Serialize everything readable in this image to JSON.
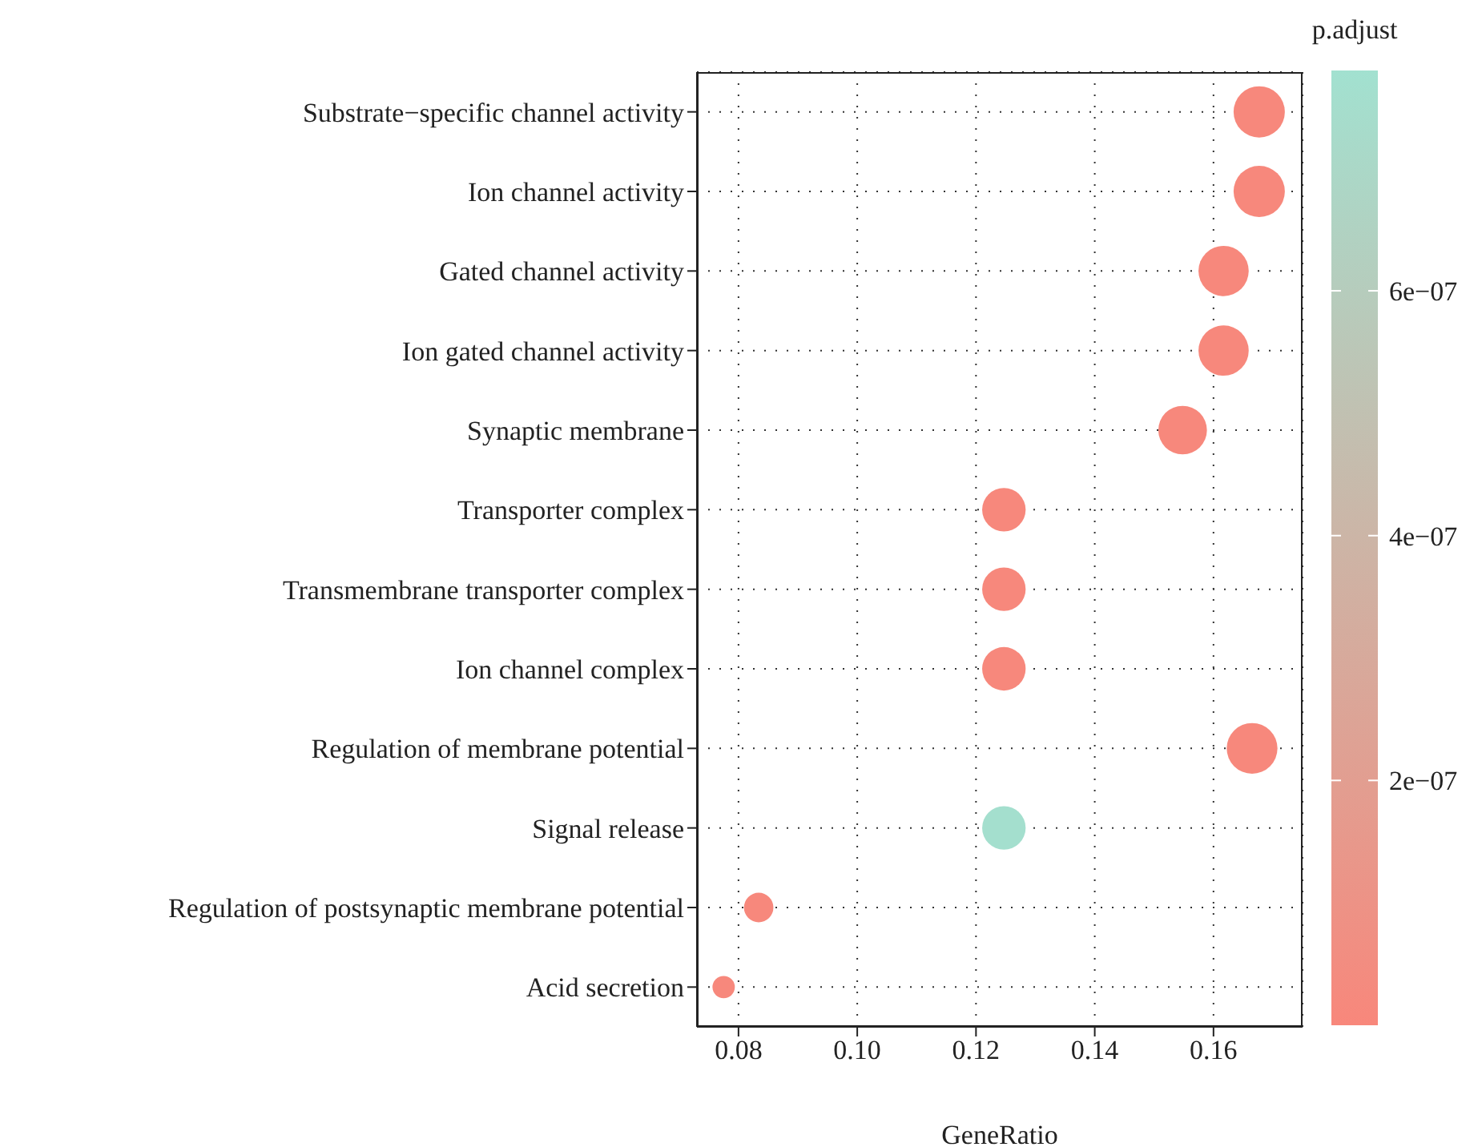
{
  "chart_data": {
    "type": "scatter",
    "categories": [
      "Substrate−specific channel activity",
      "Ion channel activity",
      "Gated channel activity",
      "Ion gated channel activity",
      "Synaptic membrane",
      "Transporter complex",
      "Transmembrane transporter complex",
      "Ion channel complex",
      "Regulation of membrane potential",
      "Signal release",
      "Regulation of postsynaptic membrane potential",
      "Acid secretion"
    ],
    "values": [
      0.1677,
      0.1677,
      0.1617,
      0.1617,
      0.1548,
      0.1247,
      0.1247,
      0.1247,
      0.1665,
      0.1247,
      0.0834,
      0.0775
    ],
    "sizes": [
      1,
      1,
      0.96,
      0.96,
      0.9,
      0.72,
      0.72,
      0.72,
      0.98,
      0.72,
      0.33,
      0.19
    ],
    "cvalues": [
      1e-08,
      1e-08,
      1e-08,
      1e-08,
      1e-08,
      1e-08,
      1e-08,
      1e-08,
      1e-08,
      7.6e-07,
      1e-08,
      1e-08
    ],
    "orientation": "horizontal",
    "xlabel": "GeneRatio",
    "clabel": "p.adjust",
    "xlim": [
      0.073,
      0.175
    ],
    "xticks": [
      {
        "value": 0.08,
        "label": "0.08"
      },
      {
        "value": 0.1,
        "label": "0.10"
      },
      {
        "value": 0.12,
        "label": "0.12"
      },
      {
        "value": 0.14,
        "label": "0.14"
      },
      {
        "value": 0.16,
        "label": "0.16"
      }
    ],
    "clim": [
      0,
      7.8e-07
    ],
    "cticks": [
      {
        "value": 2e-07,
        "label": "2e−07"
      },
      {
        "value": 4e-07,
        "label": "4e−07"
      },
      {
        "value": 6e-07,
        "label": "6e−07"
      }
    ],
    "grid": true,
    "marker": "circle"
  }
}
